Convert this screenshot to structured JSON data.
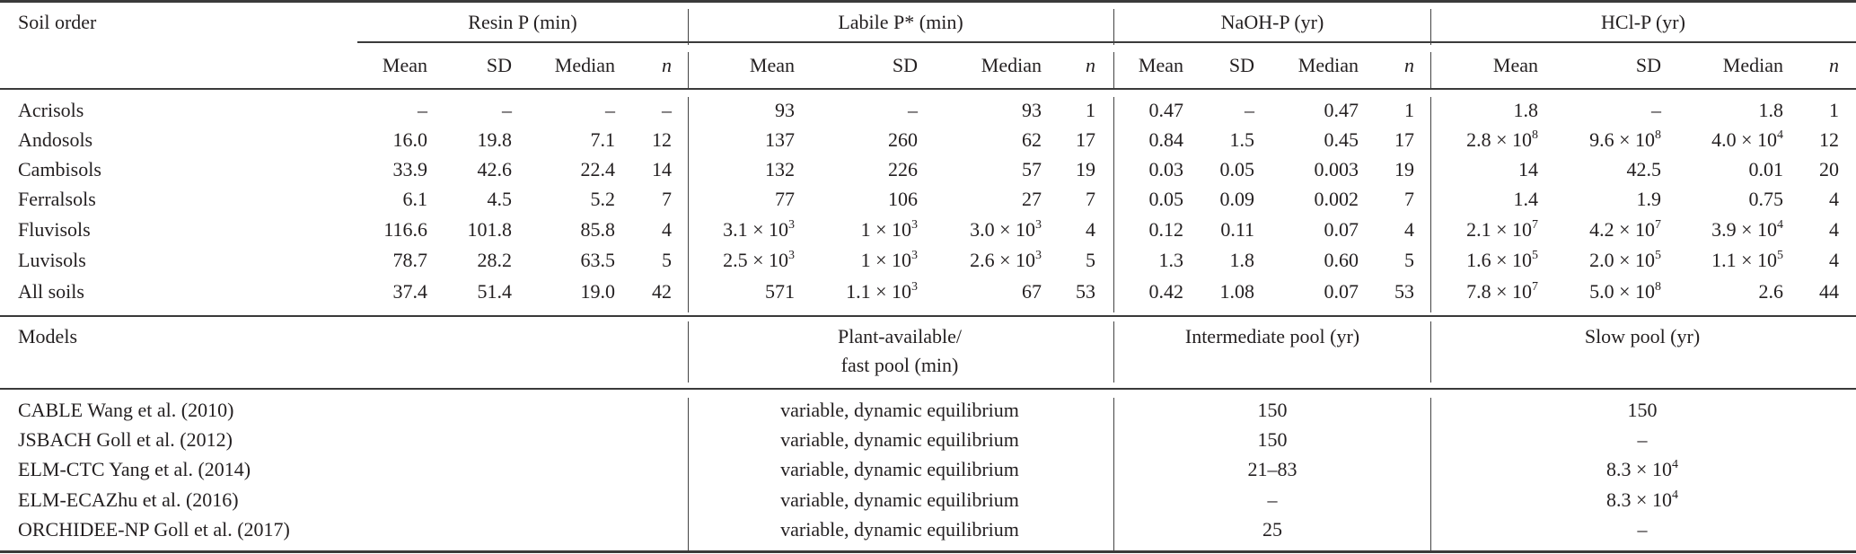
{
  "header": {
    "soil_order": "Soil order",
    "groups": [
      "Resin P (min)",
      "Labile P* (min)",
      "NaOH-P (yr)",
      "HCl-P (yr)"
    ],
    "subheaders": [
      "Mean",
      "SD",
      "Median",
      "n"
    ]
  },
  "soils": [
    {
      "name": "Acrisols",
      "values": [
        "–",
        "–",
        "–",
        "–",
        "93",
        "–",
        "93",
        "1",
        "0.47",
        "–",
        "0.47",
        "1",
        "1.8",
        "–",
        "1.8",
        "1"
      ]
    },
    {
      "name": "Andosols",
      "values": [
        "16.0",
        "19.8",
        "7.1",
        "12",
        "137",
        "260",
        "62",
        "17",
        "0.84",
        "1.5",
        "0.45",
        "17",
        "2.8 × 10^8",
        "9.6 × 10^8",
        "4.0 × 10^4",
        "12"
      ]
    },
    {
      "name": "Cambisols",
      "values": [
        "33.9",
        "42.6",
        "22.4",
        "14",
        "132",
        "226",
        "57",
        "19",
        "0.03",
        "0.05",
        "0.003",
        "19",
        "14",
        "42.5",
        "0.01",
        "20"
      ]
    },
    {
      "name": "Ferralsols",
      "values": [
        "6.1",
        "4.5",
        "5.2",
        "7",
        "77",
        "106",
        "27",
        "7",
        "0.05",
        "0.09",
        "0.002",
        "7",
        "1.4",
        "1.9",
        "0.75",
        "4"
      ]
    },
    {
      "name": "Fluvisols",
      "values": [
        "116.6",
        "101.8",
        "85.8",
        "4",
        "3.1 × 10^3",
        "1 × 10^3",
        "3.0 × 10^3",
        "4",
        "0.12",
        "0.11",
        "0.07",
        "4",
        "2.1 × 10^7",
        "4.2 × 10^7",
        "3.9 × 10^4",
        "4"
      ]
    },
    {
      "name": "Luvisols",
      "values": [
        "78.7",
        "28.2",
        "63.5",
        "5",
        "2.5 × 10^3",
        "1 × 10^3",
        "2.6 × 10^3",
        "5",
        "1.3",
        "1.8",
        "0.60",
        "5",
        "1.6 × 10^5",
        "2.0 × 10^5",
        "1.1 × 10^5",
        "4"
      ]
    },
    {
      "name": "All soils",
      "values": [
        "37.4",
        "51.4",
        "19.0",
        "42",
        "571",
        "1.1 × 10^3",
        "67",
        "53",
        "0.42",
        "1.08",
        "0.07",
        "53",
        "7.8 × 10^7",
        "5.0 × 10^8",
        "2.6",
        "44"
      ]
    }
  ],
  "models_header": {
    "models": "Models",
    "fast_pool_line1": "Plant-available/",
    "fast_pool_line2": "fast pool (min)",
    "intermediate": "Intermediate pool (yr)",
    "slow": "Slow pool (yr)"
  },
  "models": [
    {
      "name": "CABLE Wang et al. (2010)",
      "fast": "variable, dynamic equilibrium",
      "intermediate": "150",
      "slow": "150"
    },
    {
      "name": "JSBACH Goll et al. (2012)",
      "fast": "variable, dynamic equilibrium",
      "intermediate": "150",
      "slow": "–"
    },
    {
      "name": "ELM-CTC Yang et al. (2014)",
      "fast": "variable, dynamic equilibrium",
      "intermediate": "21–83",
      "slow": "8.3 × 10^4"
    },
    {
      "name": "ELM-ECAZhu et al. (2016)",
      "fast": "variable, dynamic equilibrium",
      "intermediate": "–",
      "slow": "8.3 × 10^4"
    },
    {
      "name": "ORCHIDEE-NP Goll et al. (2017)",
      "fast": "variable, dynamic equilibrium",
      "intermediate": "25",
      "slow": "–"
    }
  ]
}
